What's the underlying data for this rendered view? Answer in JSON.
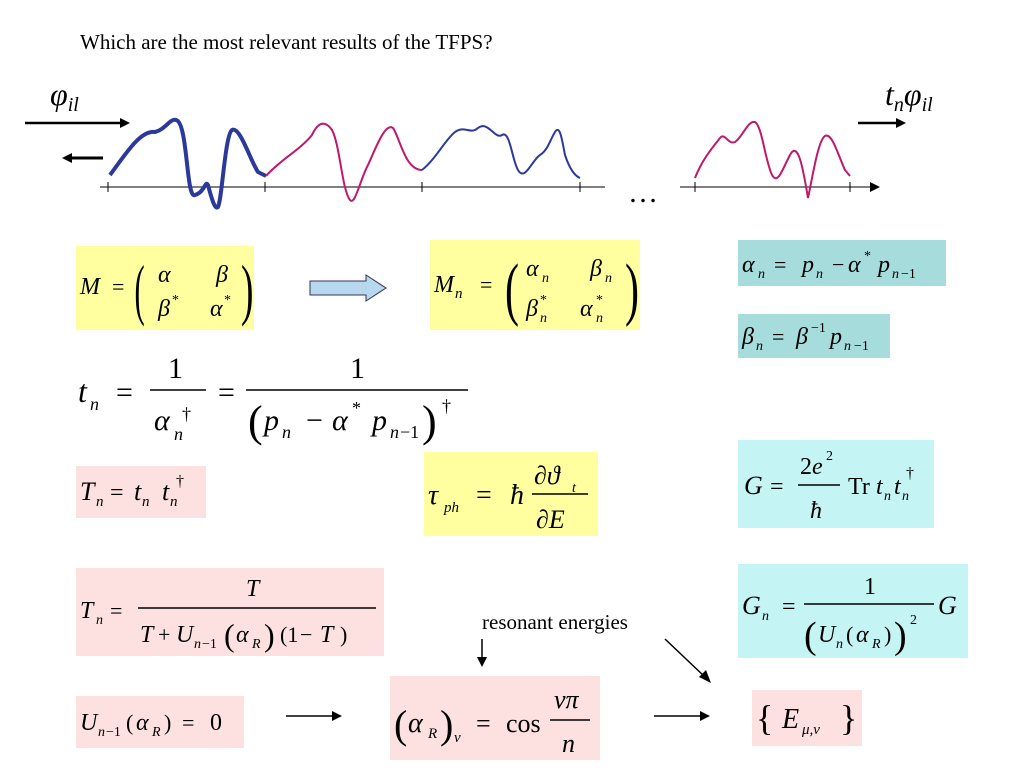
{
  "slide": {
    "title": "Which are the most relevant results of the TFPS?",
    "wave_label_left": "φ",
    "wave_label_left_sub": "il",
    "wave_label_right_t": "t",
    "wave_label_right_n": "n",
    "wave_label_right_phi": "φ",
    "wave_label_right_sub": "il",
    "ellipsis": "…",
    "annotation": "resonant energies"
  },
  "colors": {
    "wave_dark": "#2b3a9a",
    "wave_magenta": "#c0186a",
    "box_yellow": "#ffffa0",
    "box_teal": "#a6dcdc",
    "box_pink": "#fde0e0",
    "box_cyan": "#c4f4f4",
    "arrow_fill": "#b8d8f0"
  },
  "equations": {
    "M": "M = ( α  β ; β*  α* )",
    "Mn": "Mn = ( αn  βn ; βn*  αn* )",
    "alpha_n": "αn = pn − α* pn−1",
    "beta_n": "βn = β−1 pn−1",
    "t_n": "tn = 1/αn† = 1/(pn − α* pn−1)†",
    "T_n": "Tn = tn tn†",
    "tau": "τph = ħ ∂ϑt/∂E",
    "G": "G = (2e²/ħ) Tr tn tn†",
    "T_n_resonance": "Tn = T / (T + Un−1(αR)(1−T))",
    "G_n": "Gn = 1/(Un(αR))² G",
    "U_zero": "Un−1(αR) = 0",
    "alpha_R": "(αR)ν = cos νπ/n",
    "E_set": "{ Eμ,ν }"
  }
}
